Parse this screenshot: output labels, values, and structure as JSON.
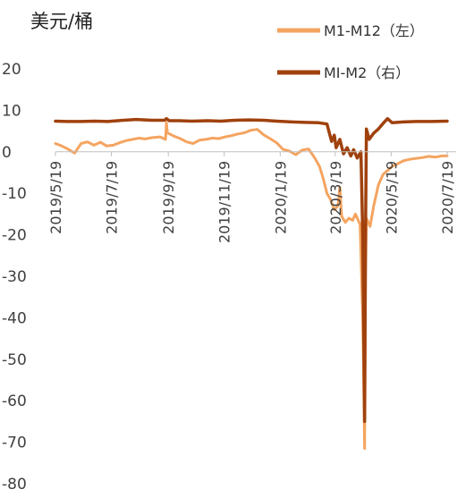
{
  "chart_data": {
    "type": "line",
    "unit_label": "美元/桶",
    "y_ticks": [
      20,
      10,
      0,
      -10,
      -20,
      -30,
      -40,
      -50,
      -60,
      -70,
      -80
    ],
    "ylim": [
      -80,
      20
    ],
    "x_tick_labels": [
      "2019/5/19",
      "2019/7/19",
      "2019/9/19",
      "2019/11/19",
      "2020/1/19",
      "2020/3/19",
      "2020/5/19",
      "2020/7/19"
    ],
    "xlim": [
      "2019/5/19",
      "2020/7/19"
    ],
    "grid": false,
    "legend_position": "top-right",
    "series": [
      {
        "name": "M1-M12（左）",
        "color": "#F4A460",
        "points": [
          [
            "2019/5/19",
            2.0
          ],
          [
            "2019/5/26",
            1.4
          ],
          [
            "2019/6/2",
            0.6
          ],
          [
            "2019/6/9",
            -0.3
          ],
          [
            "2019/6/16",
            2.0
          ],
          [
            "2019/6/23",
            2.4
          ],
          [
            "2019/6/30",
            1.6
          ],
          [
            "2019/7/7",
            2.3
          ],
          [
            "2019/7/14",
            1.4
          ],
          [
            "2019/7/21",
            1.6
          ],
          [
            "2019/7/28",
            2.2
          ],
          [
            "2019/8/4",
            2.7
          ],
          [
            "2019/8/11",
            3.0
          ],
          [
            "2019/8/18",
            3.3
          ],
          [
            "2019/8/25",
            3.1
          ],
          [
            "2019/9/1",
            3.4
          ],
          [
            "2019/9/10",
            3.6
          ],
          [
            "2019/9/16",
            3.0
          ],
          [
            "2019/9/17",
            7.0
          ],
          [
            "2019/9/18",
            4.6
          ],
          [
            "2019/9/25",
            3.8
          ],
          [
            "2019/10/2",
            3.2
          ],
          [
            "2019/10/9",
            2.4
          ],
          [
            "2019/10/16",
            2.0
          ],
          [
            "2019/10/23",
            2.8
          ],
          [
            "2019/10/30",
            3.0
          ],
          [
            "2019/11/6",
            3.3
          ],
          [
            "2019/11/13",
            3.2
          ],
          [
            "2019/11/20",
            3.6
          ],
          [
            "2019/11/27",
            3.9
          ],
          [
            "2019/12/4",
            4.3
          ],
          [
            "2019/12/11",
            4.6
          ],
          [
            "2019/12/18",
            5.2
          ],
          [
            "2019/12/25",
            5.4
          ],
          [
            "2020/1/1",
            4.1
          ],
          [
            "2020/1/8",
            3.2
          ],
          [
            "2020/1/15",
            2.2
          ],
          [
            "2020/1/22",
            0.6
          ],
          [
            "2020/1/29",
            0.2
          ],
          [
            "2020/2/5",
            -0.7
          ],
          [
            "2020/2/12",
            0.4
          ],
          [
            "2020/2/19",
            0.7
          ],
          [
            "2020/2/26",
            -1.6
          ],
          [
            "2020/3/2",
            -3.6
          ],
          [
            "2020/3/6",
            -6.5
          ],
          [
            "2020/3/10",
            -10.0
          ],
          [
            "2020/3/14",
            -11.5
          ],
          [
            "2020/3/18",
            -14.0
          ],
          [
            "2020/3/22",
            -13.0
          ],
          [
            "2020/3/24",
            -8.5
          ],
          [
            "2020/3/26",
            -15.5
          ],
          [
            "2020/3/30",
            -17.0
          ],
          [
            "2020/4/3",
            -16.0
          ],
          [
            "2020/4/7",
            -16.5
          ],
          [
            "2020/4/10",
            -15.0
          ],
          [
            "2020/4/15",
            -17.5
          ],
          [
            "2020/4/18",
            -40.0
          ],
          [
            "2020/4/20",
            -71.5
          ],
          [
            "2020/4/21",
            -30.0
          ],
          [
            "2020/4/22",
            -16.0
          ],
          [
            "2020/4/26",
            -18.0
          ],
          [
            "2020/4/30",
            -13.0
          ],
          [
            "2020/5/5",
            -8.0
          ],
          [
            "2020/5/10",
            -5.5
          ],
          [
            "2020/5/15",
            -4.5
          ],
          [
            "2020/5/20",
            -3.5
          ],
          [
            "2020/5/25",
            -3.0
          ],
          [
            "2020/6/1",
            -2.2
          ],
          [
            "2020/6/8",
            -1.8
          ],
          [
            "2020/6/15",
            -1.6
          ],
          [
            "2020/6/22",
            -1.4
          ],
          [
            "2020/6/29",
            -1.1
          ],
          [
            "2020/7/6",
            -1.3
          ],
          [
            "2020/7/13",
            -1.0
          ],
          [
            "2020/7/19",
            -1.0
          ]
        ]
      },
      {
        "name": "MI-M2（右）",
        "color": "#A0410D",
        "points": [
          [
            "2019/5/19",
            7.4
          ],
          [
            "2019/6/1",
            7.3
          ],
          [
            "2019/6/15",
            7.3
          ],
          [
            "2019/7/1",
            7.4
          ],
          [
            "2019/7/15",
            7.3
          ],
          [
            "2019/8/1",
            7.6
          ],
          [
            "2019/8/15",
            7.8
          ],
          [
            "2019/9/1",
            7.6
          ],
          [
            "2019/9/15",
            7.6
          ],
          [
            "2019/9/17",
            8.0
          ],
          [
            "2019/9/20",
            7.5
          ],
          [
            "2019/10/1",
            7.5
          ],
          [
            "2019/10/15",
            7.4
          ],
          [
            "2019/11/1",
            7.5
          ],
          [
            "2019/11/15",
            7.4
          ],
          [
            "2019/12/1",
            7.6
          ],
          [
            "2019/12/15",
            7.7
          ],
          [
            "2020/1/1",
            7.6
          ],
          [
            "2020/1/15",
            7.4
          ],
          [
            "2020/2/1",
            7.2
          ],
          [
            "2020/2/15",
            7.1
          ],
          [
            "2020/3/1",
            7.0
          ],
          [
            "2020/3/10",
            6.7
          ],
          [
            "2020/3/15",
            2.5
          ],
          [
            "2020/3/18",
            4.0
          ],
          [
            "2020/3/20",
            1.0
          ],
          [
            "2020/3/24",
            3.0
          ],
          [
            "2020/3/28",
            -0.5
          ],
          [
            "2020/4/1",
            1.0
          ],
          [
            "2020/4/5",
            -1.0
          ],
          [
            "2020/4/8",
            0.5
          ],
          [
            "2020/4/12",
            -1.5
          ],
          [
            "2020/4/16",
            0.0
          ],
          [
            "2020/4/18",
            -20.0
          ],
          [
            "2020/4/20",
            -65.0
          ],
          [
            "2020/4/21",
            -20.0
          ],
          [
            "2020/4/22",
            5.5
          ],
          [
            "2020/4/25",
            3.0
          ],
          [
            "2020/4/30",
            4.5
          ],
          [
            "2020/5/5",
            5.5
          ],
          [
            "2020/5/10",
            6.8
          ],
          [
            "2020/5/15",
            8.0
          ],
          [
            "2020/5/20",
            7.0
          ],
          [
            "2020/6/1",
            7.2
          ],
          [
            "2020/6/15",
            7.3
          ],
          [
            "2020/7/1",
            7.3
          ],
          [
            "2020/7/19",
            7.4
          ]
        ]
      }
    ]
  }
}
